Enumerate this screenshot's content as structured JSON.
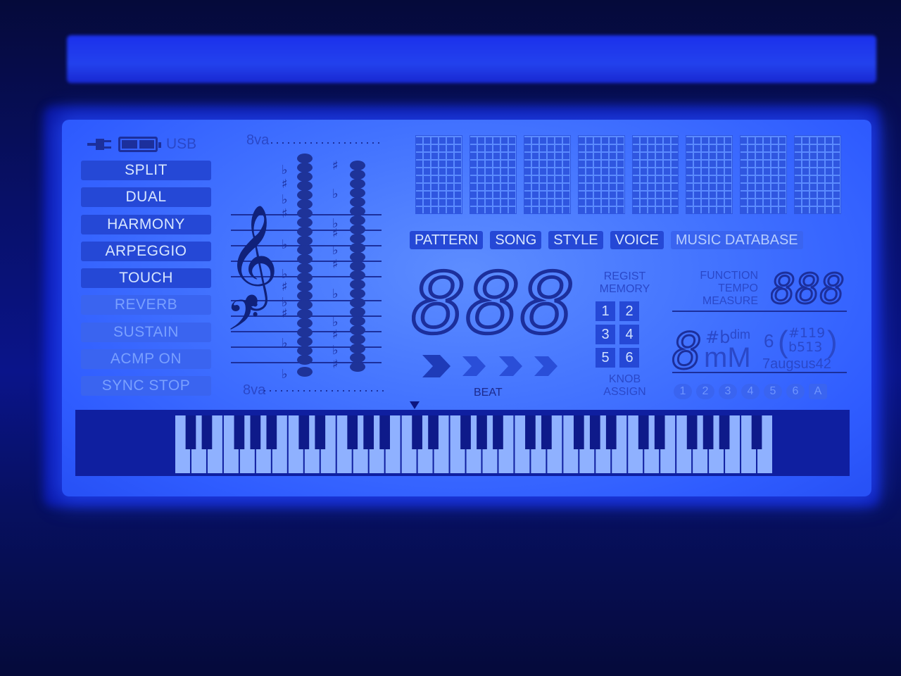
{
  "status": {
    "usb_label": "USB"
  },
  "indicators": [
    {
      "label": "SPLIT",
      "state": "on"
    },
    {
      "label": "DUAL",
      "state": "on"
    },
    {
      "label": "HARMONY",
      "state": "on"
    },
    {
      "label": "ARPEGGIO",
      "state": "on"
    },
    {
      "label": "TOUCH",
      "state": "on"
    },
    {
      "label": "REVERB",
      "state": "dim"
    },
    {
      "label": "SUSTAIN",
      "state": "dim"
    },
    {
      "label": "ACMP ON",
      "state": "dim"
    },
    {
      "label": "SYNC STOP",
      "state": "dim"
    }
  ],
  "notation": {
    "top_octave": "8va",
    "bottom_octave": "8va"
  },
  "modes": [
    "PATTERN",
    "SONG",
    "STYLE",
    "VOICE",
    "MUSIC DATABASE"
  ],
  "main_display": {
    "digits": "888",
    "beat_label": "BEAT"
  },
  "registration": {
    "title_line1": "REGIST",
    "title_line2": "MEMORY",
    "buttons": [
      "1",
      "2",
      "3",
      "4",
      "5",
      "6"
    ],
    "knob_line1": "KNOB",
    "knob_line2": "ASSIGN"
  },
  "function": {
    "line1": "FUNCTION",
    "line2": "TEMPO",
    "line3": "MEASURE",
    "digits": "888"
  },
  "chord": {
    "root": "8",
    "sharp_flat": "#b",
    "dim": "dim",
    "six": "6",
    "mM": "mM",
    "ext": "7augsus42",
    "alt1": "#119",
    "alt2": "b513"
  },
  "tracks": [
    "1",
    "2",
    "3",
    "4",
    "5",
    "6",
    "A"
  ],
  "colors": {
    "lcd_background": "#4272ff",
    "active_segment": "#2548d6",
    "bezel": "#081068"
  }
}
